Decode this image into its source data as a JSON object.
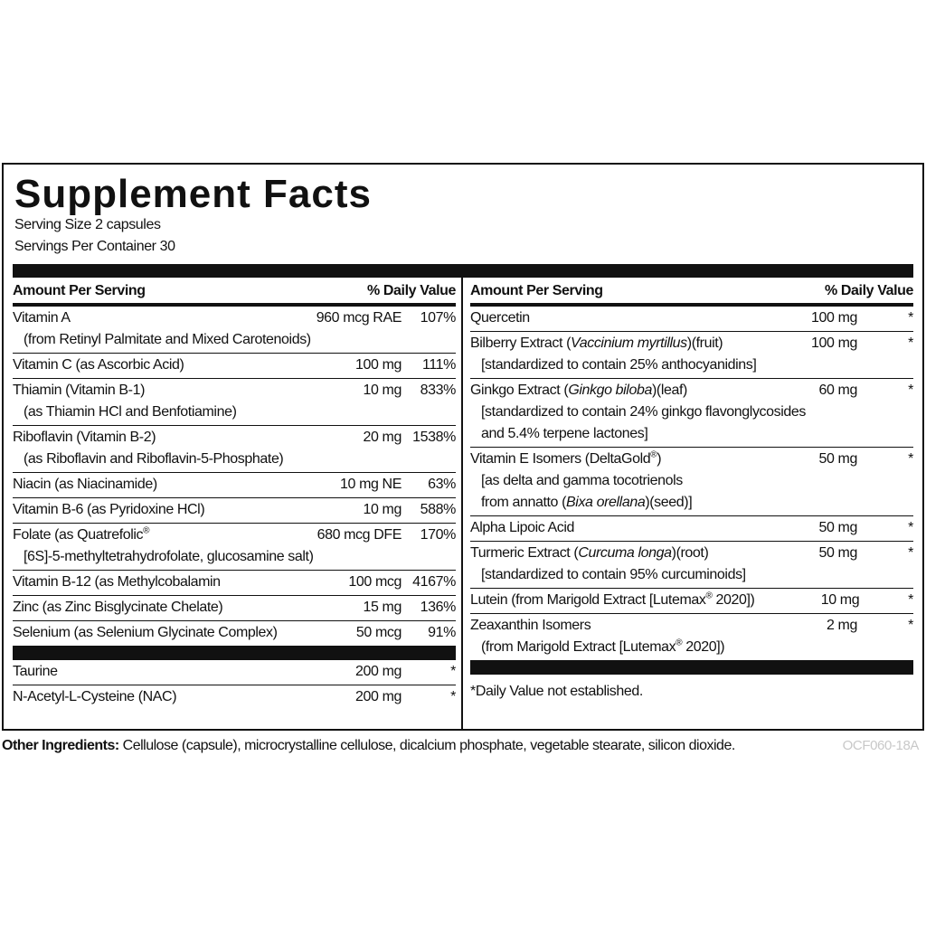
{
  "title": "Supplement Facts",
  "serving_size": "Serving Size 2 capsules",
  "servings_per_container": "Servings Per Container 30",
  "columns": [
    {
      "header": {
        "amount_per_serving": "Amount Per Serving",
        "daily_value": "% Daily Value"
      },
      "rows": [
        {
          "name": [
            {
              "text": "Vitamin A"
            }
          ],
          "amount": "960 mcg RAE",
          "dv": "107%",
          "sub": [
            [
              {
                "text": "(from Retinyl Palmitate and Mixed Carotenoids)"
              }
            ]
          ]
        },
        {
          "name": [
            {
              "text": "Vitamin C (as Ascorbic Acid)"
            }
          ],
          "amount": "100 mg",
          "dv": "111%",
          "sub": []
        },
        {
          "name": [
            {
              "text": "Thiamin (Vitamin B-1)"
            }
          ],
          "amount": "10 mg",
          "dv": "833%",
          "sub": [
            [
              {
                "text": "(as Thiamin HCl and Benfotiamine)"
              }
            ]
          ]
        },
        {
          "name": [
            {
              "text": "Riboflavin (Vitamin B-2)"
            }
          ],
          "amount": "20 mg",
          "dv": "1538%",
          "sub": [
            [
              {
                "text": "(as Riboflavin and Riboflavin-5-Phosphate)"
              }
            ]
          ]
        },
        {
          "name": [
            {
              "text": "Niacin (as Niacinamide)"
            }
          ],
          "amount": "10 mg NE",
          "dv": "63%",
          "sub": []
        },
        {
          "name": [
            {
              "text": "Vitamin B-6 (as Pyridoxine HCl)"
            }
          ],
          "amount": "10 mg",
          "dv": "588%",
          "sub": []
        },
        {
          "name": [
            {
              "text": "Folate (as Quatrefolic"
            },
            {
              "text": "®",
              "style": "sup"
            }
          ],
          "amount": "680 mcg DFE",
          "dv": "170%",
          "sub": [
            [
              {
                "text": "[6S]-5-methyltetrahydrofolate, glucosamine salt)"
              }
            ]
          ]
        },
        {
          "name": [
            {
              "text": "Vitamin B-12 (as Methylcobalamin"
            }
          ],
          "amount": "100 mcg",
          "dv": "4167%",
          "sub": []
        },
        {
          "name": [
            {
              "text": "Zinc (as Zinc Bisglycinate Chelate)"
            }
          ],
          "amount": "15 mg",
          "dv": "136%",
          "sub": []
        },
        {
          "name": [
            {
              "text": "Selenium (as Selenium Glycinate Complex)"
            }
          ],
          "amount": "50 mcg",
          "dv": "91%",
          "sub": []
        }
      ],
      "extra_rows": [
        {
          "name": [
            {
              "text": "Taurine"
            }
          ],
          "amount": "200 mg",
          "dv": "*",
          "sub": []
        },
        {
          "name": [
            {
              "text": "N-Acetyl-L-Cysteine (NAC)"
            }
          ],
          "amount": "200 mg",
          "dv": "*",
          "sub": []
        }
      ]
    },
    {
      "header": {
        "amount_per_serving": "Amount Per Serving",
        "daily_value": "% Daily Value"
      },
      "rows": [
        {
          "name": [
            {
              "text": "Quercetin"
            }
          ],
          "amount": "100 mg",
          "dv": "*",
          "sub": []
        },
        {
          "name": [
            {
              "text": "Bilberry Extract ("
            },
            {
              "text": "Vaccinium myrtillus",
              "style": "italic"
            },
            {
              "text": ")(fruit)"
            }
          ],
          "amount": "100 mg",
          "dv": "*",
          "sub": [
            [
              {
                "text": "[standardized to contain 25% anthocyanidins]"
              }
            ]
          ]
        },
        {
          "name": [
            {
              "text": "Ginkgo Extract ("
            },
            {
              "text": "Ginkgo biloba",
              "style": "italic"
            },
            {
              "text": ")(leaf)"
            }
          ],
          "amount": "60 mg",
          "dv": "*",
          "sub": [
            [
              {
                "text": "[standardized to contain 24% ginkgo flavonglycosides"
              }
            ],
            [
              {
                "text": "and 5.4% terpene lactones]"
              }
            ]
          ]
        },
        {
          "name": [
            {
              "text": "Vitamin E Isomers (DeltaGold"
            },
            {
              "text": "®",
              "style": "sup"
            },
            {
              "text": ")"
            }
          ],
          "amount": "50 mg",
          "dv": "*",
          "sub": [
            [
              {
                "text": "[as delta and gamma tocotrienols"
              }
            ],
            [
              {
                "text": "from annatto ("
              },
              {
                "text": "Bixa orellana",
                "style": "italic"
              },
              {
                "text": ")(seed)]"
              }
            ]
          ]
        },
        {
          "name": [
            {
              "text": "Alpha Lipoic Acid"
            }
          ],
          "amount": "50 mg",
          "dv": "*",
          "sub": []
        },
        {
          "name": [
            {
              "text": "Turmeric Extract ("
            },
            {
              "text": "Curcuma longa",
              "style": "italic"
            },
            {
              "text": ")(root)"
            }
          ],
          "amount": "50 mg",
          "dv": "*",
          "sub": [
            [
              {
                "text": "[standardized to contain 95% curcuminoids]"
              }
            ]
          ]
        },
        {
          "name": [
            {
              "text": "Lutein (from Marigold Extract [Lutemax"
            },
            {
              "text": "®",
              "style": "sup"
            },
            {
              "text": " 2020])"
            }
          ],
          "amount": "10 mg",
          "dv": "*",
          "sub": []
        },
        {
          "name": [
            {
              "text": "Zeaxanthin Isomers"
            }
          ],
          "amount": "2 mg",
          "dv": "*",
          "sub": [
            [
              {
                "text": "(from Marigold Extract [Lutemax"
              },
              {
                "text": "®",
                "style": "sup"
              },
              {
                "text": " 2020])"
              }
            ]
          ]
        }
      ],
      "footnote": "*Daily Value not established."
    }
  ],
  "other_ingredients": {
    "label": "Other Ingredients:",
    "text": "Cellulose (capsule), microcrystalline cellulose, dicalcium phosphate, vegetable stearate, silicon dioxide."
  },
  "code": "OCF060-18A"
}
